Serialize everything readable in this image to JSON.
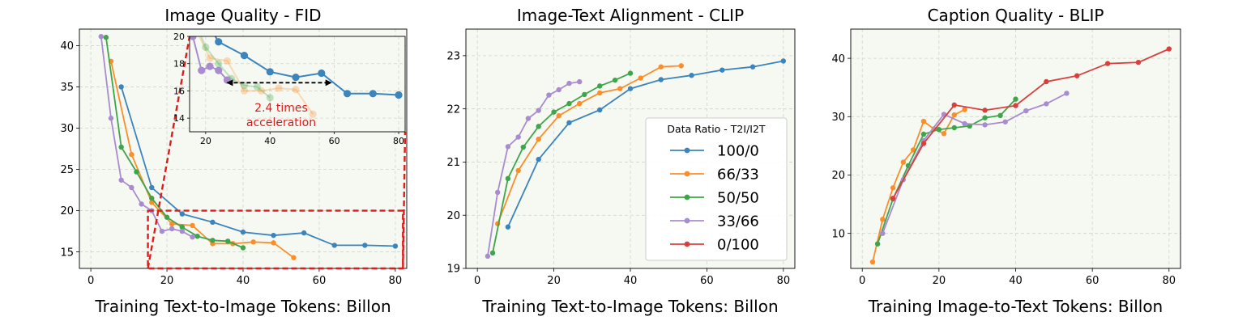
{
  "colors": {
    "100/0": "#3b84bd",
    "66/33": "#fb8e2b",
    "50/50": "#3ea54a",
    "33/66": "#a98bd0",
    "0/100": "#d9403d",
    "plot_bg": "#f6f9f2",
    "grid": "#cfd6c9",
    "zoom_box": "#e31a1c",
    "annotation_text": "#e31a1c"
  },
  "chart_data": [
    {
      "type": "line",
      "title": "Image Quality - FID",
      "xlabel": "Training Text-to-Image Tokens: Billon",
      "ylabel": "",
      "xlim": [
        -3,
        83
      ],
      "ylim": [
        13,
        42
      ],
      "xticks": [
        0,
        20,
        40,
        60,
        80
      ],
      "yticks": [
        15,
        20,
        25,
        30,
        35,
        40
      ],
      "grid": true,
      "series": [
        {
          "name": "100/0",
          "x": [
            8,
            16,
            24,
            32,
            40,
            48,
            56,
            64,
            72,
            80
          ],
          "y": [
            35.0,
            22.8,
            19.6,
            18.6,
            17.4,
            17.0,
            17.3,
            15.8,
            15.8,
            15.7
          ]
        },
        {
          "name": "66/33",
          "x": [
            5.3,
            10.7,
            16,
            21.3,
            26.7,
            32,
            37.3,
            42.7,
            48,
            53.3
          ],
          "y": [
            38.1,
            26.8,
            21.0,
            18.4,
            18.2,
            16.0,
            16.0,
            16.2,
            16.1,
            14.3
          ]
        },
        {
          "name": "50/50",
          "x": [
            4,
            8,
            12,
            16,
            20,
            24,
            28,
            32,
            36,
            40
          ],
          "y": [
            41.0,
            27.7,
            24.7,
            21.5,
            19.2,
            18.0,
            16.9,
            16.4,
            16.3,
            15.5
          ]
        },
        {
          "name": "33/66",
          "x": [
            2.7,
            5.3,
            8,
            10.7,
            13.3,
            16,
            18.7,
            21.3,
            24,
            26.7
          ],
          "y": [
            41.1,
            31.2,
            23.7,
            22.8,
            20.8,
            20.0,
            17.5,
            17.8,
            17.5,
            16.8
          ]
        }
      ],
      "inset": {
        "xlim": [
          15,
          82
        ],
        "ylim": [
          13,
          20
        ],
        "xticks": [
          20,
          40,
          60,
          80
        ],
        "yticks": [
          14,
          16,
          18,
          20
        ],
        "annotation": [
          "2.4 times",
          "acceleration"
        ],
        "arrow_from": [
          26.7,
          16.6
        ],
        "arrow_to": [
          59,
          16.6
        ],
        "faded_series": [
          "66/33",
          "50/50"
        ]
      },
      "zoom_region": {
        "xlim": [
          15,
          82
        ],
        "ylim": [
          13,
          20
        ]
      }
    },
    {
      "type": "line",
      "title": "Image-Text Alignment - CLIP",
      "xlabel": "Training Text-to-Image Tokens: Billon",
      "ylabel": "",
      "xlim": [
        -3,
        83
      ],
      "ylim": [
        19,
        23.5
      ],
      "xticks": [
        0,
        20,
        40,
        60,
        80
      ],
      "yticks": [
        19,
        20,
        21,
        22,
        23
      ],
      "grid": true,
      "legend": {
        "title": "Data Ratio - T2I/I2T",
        "placement": "lower-right",
        "entries": [
          "100/0",
          "66/33",
          "50/50",
          "33/66",
          "0/100"
        ]
      },
      "series": [
        {
          "name": "100/0",
          "x": [
            8,
            16,
            24,
            32,
            40,
            48,
            56,
            64,
            72,
            80
          ],
          "y": [
            19.78,
            21.05,
            21.74,
            21.98,
            22.38,
            22.55,
            22.63,
            22.73,
            22.79,
            22.9
          ]
        },
        {
          "name": "66/33",
          "x": [
            5.3,
            10.7,
            16,
            21.3,
            26.7,
            32,
            37.3,
            42.7,
            48,
            53.3
          ],
          "y": [
            19.84,
            20.84,
            21.43,
            21.87,
            22.1,
            22.3,
            22.38,
            22.58,
            22.79,
            22.81
          ]
        },
        {
          "name": "50/50",
          "x": [
            4,
            8,
            12,
            16,
            20,
            24,
            28,
            32,
            36,
            40
          ],
          "y": [
            19.29,
            20.69,
            21.28,
            21.67,
            21.94,
            22.1,
            22.27,
            22.43,
            22.54,
            22.67
          ]
        },
        {
          "name": "33/66",
          "x": [
            2.7,
            5.3,
            8,
            10.7,
            13.3,
            16,
            18.7,
            21.3,
            24,
            26.7
          ],
          "y": [
            19.23,
            20.43,
            21.29,
            21.47,
            21.82,
            21.97,
            22.26,
            22.36,
            22.48,
            22.51
          ]
        }
      ]
    },
    {
      "type": "line",
      "title": "Caption Quality - BLIP",
      "xlabel": "Training Image-to-Text Tokens: Billon",
      "ylabel": "",
      "xlim": [
        -3,
        83
      ],
      "ylim": [
        4,
        45
      ],
      "xticks": [
        0,
        20,
        40,
        60,
        80
      ],
      "yticks": [
        10,
        20,
        30,
        40
      ],
      "grid": true,
      "series": [
        {
          "name": "66/33",
          "x": [
            2.7,
            5.3,
            8,
            10.7,
            13.3,
            16,
            18.7,
            21.3,
            24,
            26.7
          ],
          "y": [
            5.1,
            12.4,
            17.8,
            22.2,
            24.3,
            29.2,
            27.9,
            27.1,
            30.3,
            31.2
          ]
        },
        {
          "name": "50/50",
          "x": [
            4,
            8,
            12,
            16,
            20,
            24,
            28,
            32,
            36,
            40
          ],
          "y": [
            8.2,
            15.9,
            21.6,
            27.0,
            27.8,
            28.1,
            28.4,
            29.8,
            30.2,
            33.0
          ]
        },
        {
          "name": "33/66",
          "x": [
            5.3,
            10.7,
            16,
            21.3,
            26.7,
            32,
            37.3,
            42.7,
            48,
            53.3
          ],
          "y": [
            10.0,
            19.2,
            25.9,
            30.4,
            28.8,
            28.6,
            29.1,
            31.0,
            32.2,
            34.0
          ]
        },
        {
          "name": "0/100",
          "x": [
            8,
            16,
            24,
            32,
            40,
            48,
            56,
            64,
            72,
            80
          ],
          "y": [
            16.0,
            25.4,
            32.0,
            31.1,
            31.9,
            36.0,
            37.0,
            39.1,
            39.3,
            41.6
          ]
        }
      ]
    }
  ]
}
